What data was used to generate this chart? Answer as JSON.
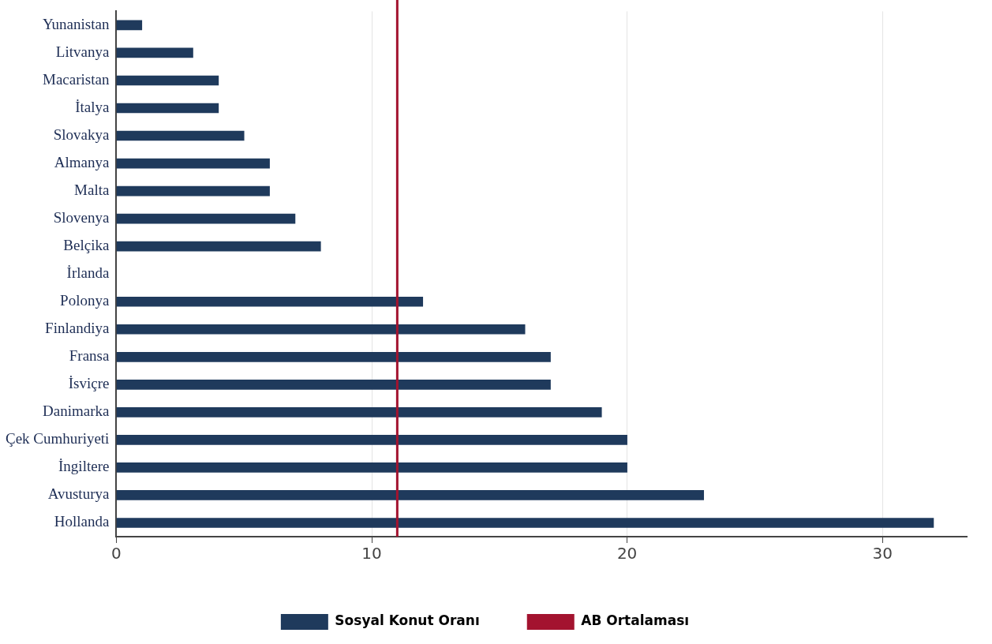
{
  "chart_data": {
    "type": "bar",
    "orientation": "horizontal",
    "categories": [
      "Yunanistan",
      "Litvanya",
      "Macaristan",
      "İtalya",
      "Slovakya",
      "Almanya",
      "Malta",
      "Slovenya",
      "Belçika",
      "İrlanda",
      "Polonya",
      "Finlandiya",
      "Fransa",
      "İsviçre",
      "Danimarka",
      "Çek Cumhuriyeti",
      "İngiltere",
      "Avusturya",
      "Hollanda"
    ],
    "series": [
      {
        "name": "Sosyal Konut Oranı",
        "color": "#1f3a5c",
        "values": [
          1,
          3,
          4,
          4,
          5,
          6,
          6,
          7,
          8,
          null,
          12,
          16,
          17,
          17,
          19,
          20,
          20,
          23,
          32
        ]
      }
    ],
    "xlim": [
      0,
      33.3
    ],
    "xticks": [
      0,
      10,
      20,
      30
    ],
    "grid": "x",
    "legend": "bottom",
    "ref_lines": [
      {
        "axis": "x",
        "value": 11,
        "label": "AB Ortalaması",
        "color": "#a3132f"
      }
    ]
  }
}
